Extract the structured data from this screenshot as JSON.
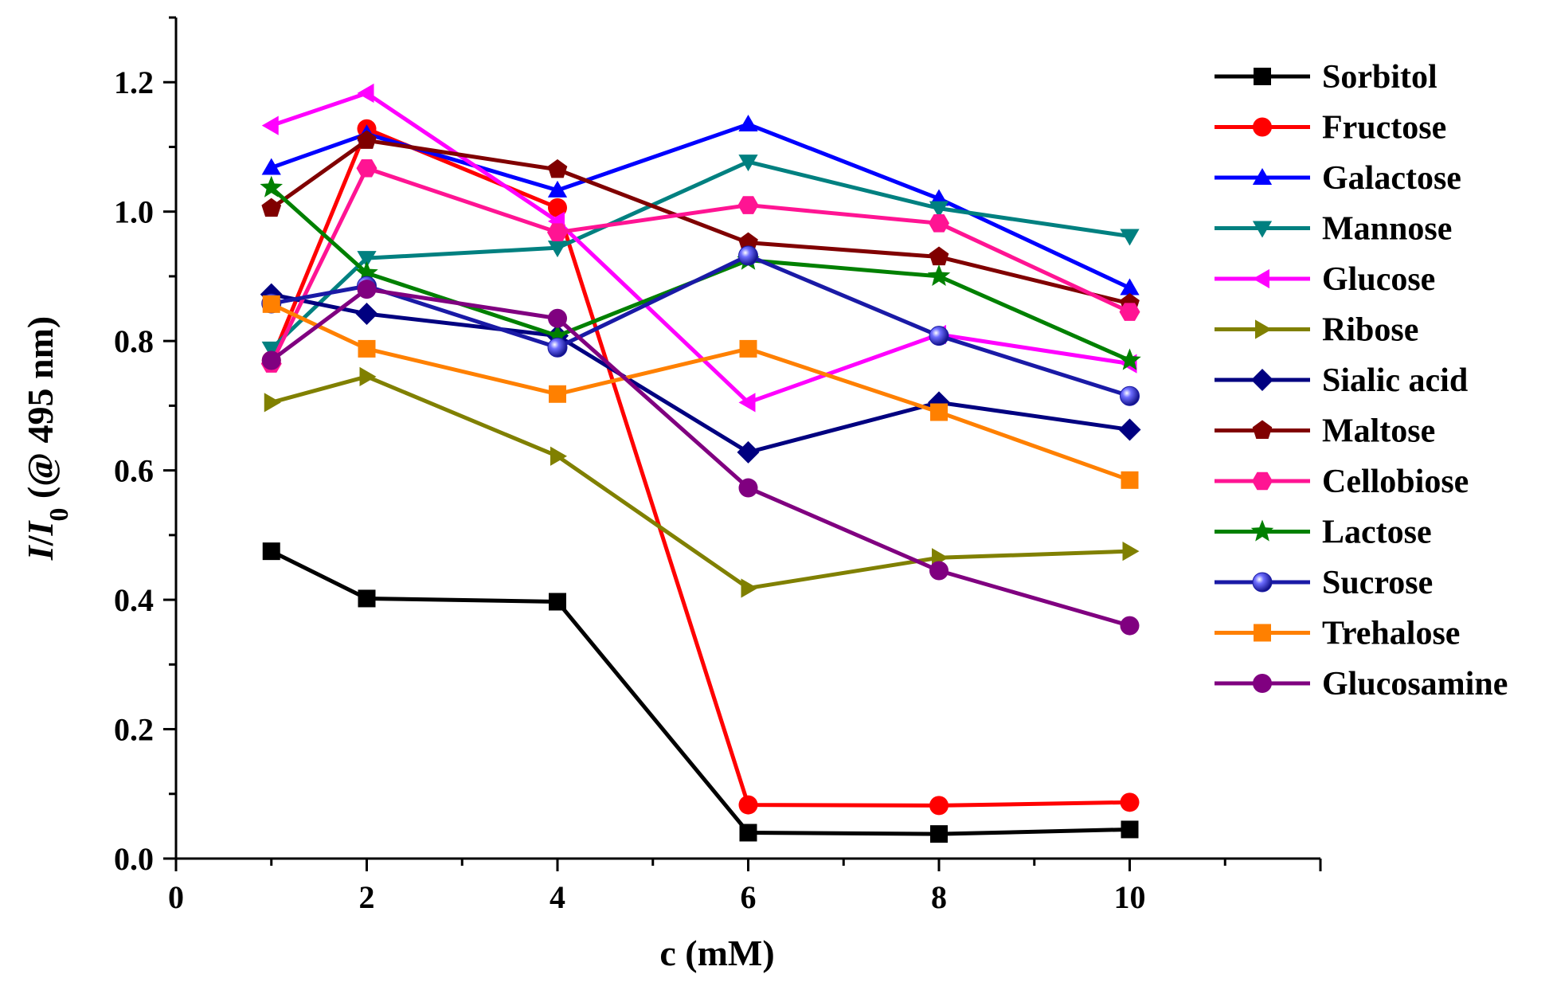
{
  "chart_data": {
    "type": "line",
    "title": "",
    "xlabel": "c (mM)",
    "ylabel_parts": [
      "I",
      "/",
      "I",
      "0",
      " (@ 495 nm)"
    ],
    "xlim": [
      0,
      12
    ],
    "ylim": [
      0,
      1.3
    ],
    "x_ticks": [
      0,
      2,
      4,
      6,
      8,
      10
    ],
    "y_ticks": [
      "0.0",
      "0.2",
      "0.4",
      "0.6",
      "0.8",
      "1.0",
      "1.2"
    ],
    "grid": false,
    "legend_position": "right",
    "x": [
      1,
      2,
      4,
      6,
      8,
      10
    ],
    "series": [
      {
        "name": "Sorbitol",
        "color": "#000000",
        "marker": "square",
        "values": [
          0.475,
          0.402,
          0.397,
          0.04,
          0.038,
          0.045
        ]
      },
      {
        "name": "Fructose",
        "color": "#ff0000",
        "marker": "circle",
        "values": [
          0.77,
          1.128,
          1.006,
          0.083,
          0.082,
          0.087
        ]
      },
      {
        "name": "Galactose",
        "color": "#0000ff",
        "marker": "triangle-up",
        "values": [
          1.068,
          1.12,
          1.033,
          1.135,
          1.02,
          0.882
        ]
      },
      {
        "name": "Mannose",
        "color": "#008080",
        "marker": "triangle-down",
        "values": [
          0.788,
          0.928,
          0.944,
          1.077,
          1.005,
          0.962
        ]
      },
      {
        "name": "Glucose",
        "color": "#ff00ff",
        "marker": "triangle-left",
        "values": [
          1.133,
          1.183,
          0.985,
          0.705,
          0.81,
          0.765
        ]
      },
      {
        "name": "Ribose",
        "color": "#808000",
        "marker": "triangle-right",
        "values": [
          0.705,
          0.745,
          0.622,
          0.418,
          0.465,
          0.475
        ]
      },
      {
        "name": "Sialic acid",
        "color": "#000080",
        "marker": "diamond",
        "values": [
          0.872,
          0.842,
          0.808,
          0.628,
          0.705,
          0.663
        ]
      },
      {
        "name": "Maltose",
        "color": "#800000",
        "marker": "pentagon",
        "values": [
          1.005,
          1.11,
          1.065,
          0.952,
          0.93,
          0.858
        ]
      },
      {
        "name": "Cellobiose",
        "color": "#ff1493",
        "marker": "hexagon",
        "values": [
          0.765,
          1.067,
          0.968,
          1.01,
          0.982,
          0.845
        ]
      },
      {
        "name": "Lactose",
        "color": "#008000",
        "marker": "star",
        "values": [
          1.037,
          0.905,
          0.808,
          0.925,
          0.9,
          0.77
        ]
      },
      {
        "name": "Sucrose",
        "color": "#1a1aa6",
        "marker": "sphere",
        "values": [
          0.858,
          0.885,
          0.79,
          0.932,
          0.808,
          0.715
        ]
      },
      {
        "name": "Trehalose",
        "color": "#ff8000",
        "marker": "square",
        "values": [
          0.857,
          0.788,
          0.718,
          0.788,
          0.69,
          0.585
        ]
      },
      {
        "name": "Glucosamine",
        "color": "#800080",
        "marker": "circle",
        "values": [
          0.77,
          0.88,
          0.835,
          0.573,
          0.445,
          0.36
        ]
      }
    ]
  }
}
